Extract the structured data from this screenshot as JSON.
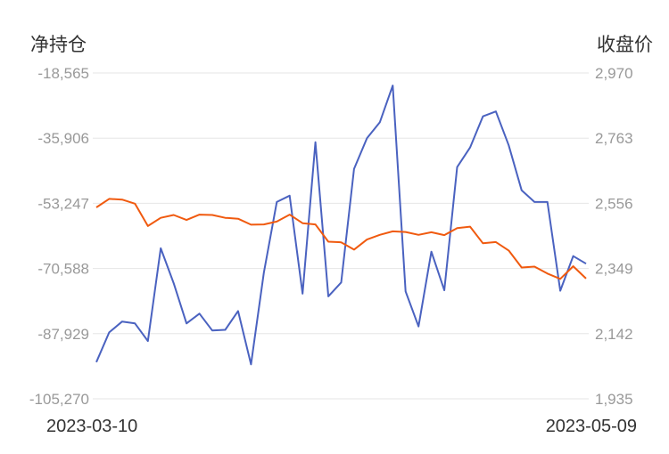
{
  "chart_data": {
    "type": "line",
    "left_axis_title": "净持仓",
    "right_axis_title": "收盘价",
    "left_axis": {
      "ticks": [
        "-18,565",
        "-35,906",
        "-53,247",
        "-70,588",
        "-87,929",
        "-105,270"
      ],
      "range": [
        -105270,
        -18565
      ]
    },
    "right_axis": {
      "ticks": [
        "2,970",
        "2,763",
        "2,556",
        "2,349",
        "2,142",
        "1,935"
      ],
      "range": [
        1935,
        2970
      ]
    },
    "x_labels": {
      "start": "2023-03-10",
      "end": "2023-05-09"
    },
    "grid": true,
    "series": [
      {
        "axis": "left",
        "color": "#4a62c0",
        "values": [
          -95500,
          -87600,
          -84700,
          -85200,
          -89900,
          -65200,
          -74500,
          -85200,
          -82600,
          -87100,
          -86900,
          -81900,
          -96100,
          -71700,
          -52900,
          -51200,
          -77300,
          -37000,
          -78000,
          -74300,
          -44100,
          -35900,
          -31700,
          -21900,
          -76700,
          -86000,
          -66100,
          -76400,
          -43600,
          -38400,
          -30100,
          -28800,
          -37800,
          -49800,
          -52900,
          -52900,
          -76500,
          -67300,
          -69300
        ]
      },
      {
        "axis": "right",
        "color": "#f05a0f",
        "values": [
          2543,
          2570,
          2568,
          2555,
          2484,
          2510,
          2519,
          2503,
          2520,
          2519,
          2510,
          2507,
          2488,
          2489,
          2498,
          2520,
          2493,
          2489,
          2434,
          2432,
          2409,
          2441,
          2456,
          2467,
          2465,
          2456,
          2464,
          2455,
          2477,
          2482,
          2429,
          2433,
          2406,
          2352,
          2355,
          2333,
          2316,
          2356,
          2317
        ]
      }
    ]
  }
}
